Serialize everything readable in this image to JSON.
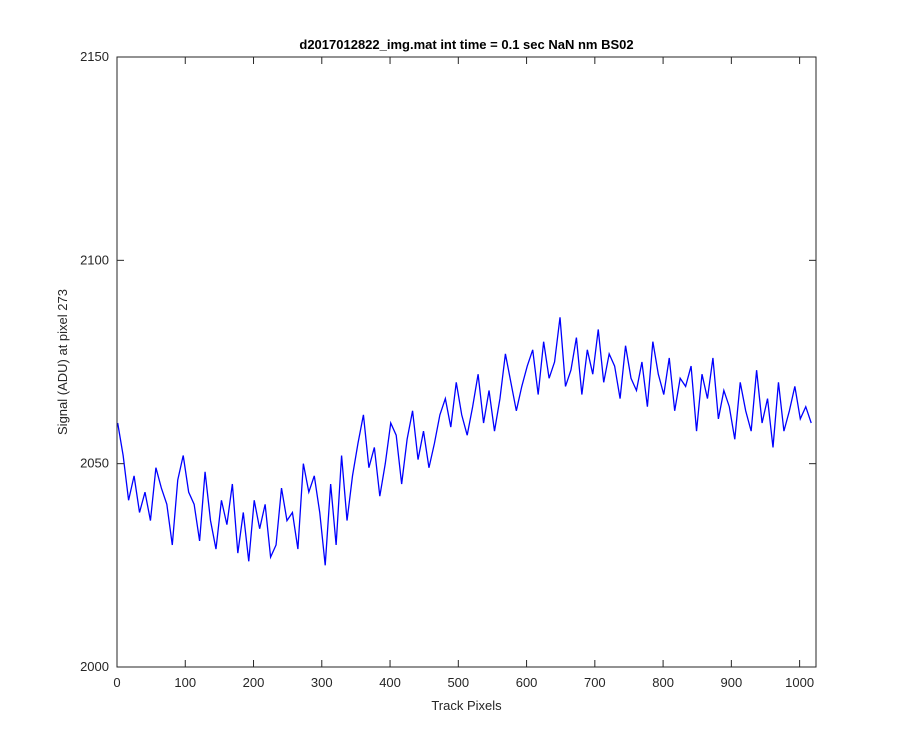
{
  "chart_data": {
    "type": "line",
    "title": "d2017012822_img.mat int time = 0.1 sec  NaN nm BS02",
    "xlabel": "Track Pixels",
    "ylabel": "Signal (ADU) at pixel 273",
    "xlim": [
      0,
      1024
    ],
    "ylim": [
      2000,
      2150
    ],
    "xticks": [
      0,
      100,
      200,
      300,
      400,
      500,
      600,
      700,
      800,
      900,
      1000
    ],
    "yticks": [
      2000,
      2050,
      2100,
      2150
    ],
    "x_tick_labels": [
      "0",
      "100",
      "200",
      "300",
      "400",
      "500",
      "600",
      "700",
      "800",
      "900",
      "1000"
    ],
    "y_tick_labels": [
      "2000",
      "2050",
      "2100",
      "2150"
    ],
    "grid": false,
    "series": [
      {
        "color": "#0000ff",
        "x_start": 1,
        "x_step": 8,
        "values": [
          2060,
          2052,
          2041,
          2047,
          2038,
          2043,
          2036,
          2049,
          2044,
          2040,
          2030,
          2046,
          2052,
          2043,
          2040,
          2031,
          2048,
          2036,
          2029,
          2041,
          2035,
          2045,
          2028,
          2038,
          2026,
          2041,
          2034,
          2040,
          2027,
          2030,
          2044,
          2036,
          2038,
          2029,
          2050,
          2043,
          2047,
          2038,
          2025,
          2045,
          2030,
          2052,
          2036,
          2047,
          2055,
          2062,
          2049,
          2054,
          2042,
          2050,
          2060,
          2057,
          2045,
          2056,
          2063,
          2051,
          2058,
          2049,
          2055,
          2062,
          2066,
          2059,
          2070,
          2062,
          2057,
          2064,
          2072,
          2060,
          2068,
          2058,
          2066,
          2077,
          2070,
          2063,
          2069,
          2074,
          2078,
          2067,
          2080,
          2071,
          2075,
          2086,
          2069,
          2073,
          2081,
          2067,
          2078,
          2072,
          2083,
          2070,
          2077,
          2074,
          2066,
          2079,
          2071,
          2068,
          2075,
          2064,
          2080,
          2072,
          2067,
          2076,
          2063,
          2071,
          2069,
          2074,
          2058,
          2072,
          2066,
          2076,
          2061,
          2068,
          2064,
          2056,
          2070,
          2063,
          2058,
          2073,
          2060,
          2066,
          2054,
          2070,
          2058,
          2063,
          2069,
          2061,
          2064,
          2060
        ]
      }
    ]
  }
}
